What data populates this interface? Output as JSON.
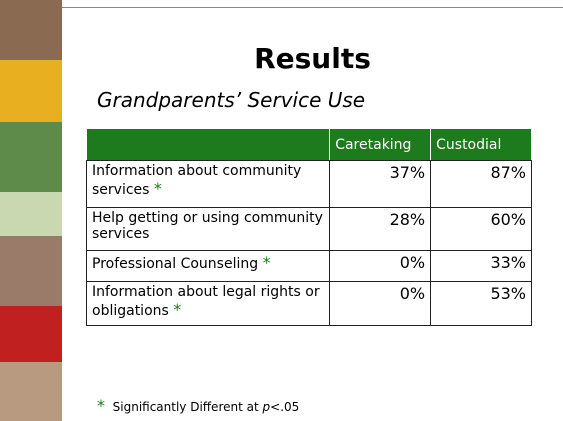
{
  "title": "Results",
  "subtitle": "Grandparents’ Service Use",
  "table": {
    "header": [
      "Caretaking",
      "Custodial"
    ],
    "rows": [
      {
        "label": "Information about community services",
        "star": "*",
        "cells": [
          "37%",
          "87%"
        ]
      },
      {
        "label": "Help getting or using community services",
        "cells": [
          "28%",
          "60%"
        ]
      },
      {
        "label": "Professional Counseling",
        "star": "*",
        "cells": [
          "0%",
          "33%"
        ]
      },
      {
        "label": "Information about legal rights or obligations",
        "star": "*",
        "cells": [
          "0%",
          "53%"
        ]
      }
    ]
  },
  "footnote": {
    "star": "*",
    "text": "Significantly Different at",
    "italic": "p",
    "rest": "<.05"
  }
}
